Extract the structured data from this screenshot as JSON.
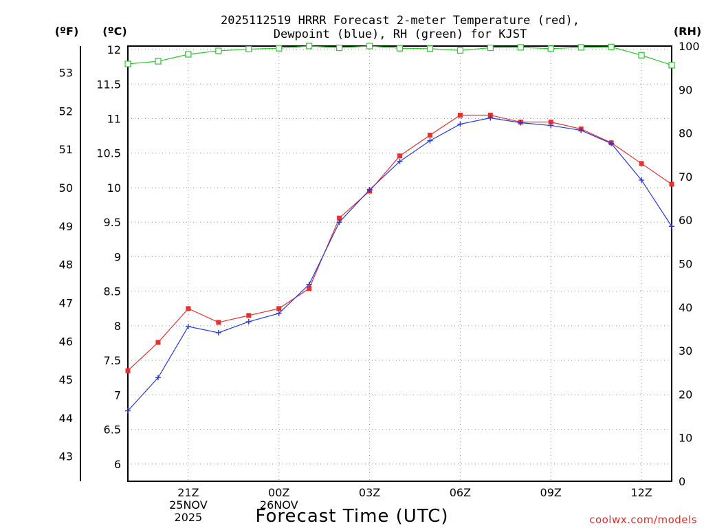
{
  "chart_data": {
    "type": "line",
    "title_line1": "2025112519 HRRR Forecast 2-meter Temperature (red),",
    "title_line2": "Dewpoint (blue), RH (green) for KJST",
    "xlabel": "Forecast Time (UTC)",
    "units": {
      "fahrenheit": "(ºF)",
      "celsius": "(ºC)",
      "rh": "(RH)"
    },
    "credit": "coolwx.com/models",
    "x_hours": [
      19,
      20,
      21,
      22,
      23,
      24,
      25,
      26,
      27,
      28,
      29,
      30,
      31,
      32,
      33,
      34,
      35,
      36,
      37
    ],
    "x_ticks": [
      {
        "hour": 21,
        "lines": [
          "21Z",
          "25NOV",
          "2025"
        ]
      },
      {
        "hour": 24,
        "lines": [
          "00Z",
          "26NOV"
        ]
      },
      {
        "hour": 27,
        "lines": [
          "03Z"
        ]
      },
      {
        "hour": 30,
        "lines": [
          "06Z"
        ]
      },
      {
        "hour": 33,
        "lines": [
          "09Z"
        ]
      },
      {
        "hour": 36,
        "lines": [
          "12Z"
        ]
      }
    ],
    "xlim": [
      19,
      37
    ],
    "celsius_axis": {
      "ylim": [
        5.75,
        12.05
      ],
      "ticks": [
        "6",
        "6.5",
        "7",
        "7.5",
        "8",
        "8.5",
        "9",
        "9.5",
        "10",
        "10.5",
        "11",
        "11.5",
        "12"
      ]
    },
    "fahrenheit_axis": {
      "ticks": [
        "43",
        "44",
        "45",
        "46",
        "47",
        "48",
        "49",
        "50",
        "51",
        "52",
        "53"
      ]
    },
    "rh_axis": {
      "ylim": [
        0,
        100
      ],
      "ticks": [
        "0",
        "10",
        "20",
        "30",
        "40",
        "50",
        "60",
        "70",
        "80",
        "90",
        "100"
      ]
    },
    "series": [
      {
        "name": "Temperature",
        "color": "#e83030",
        "marker": "square-filled",
        "axis": "celsius",
        "values": [
          7.35,
          7.76,
          8.25,
          8.05,
          8.15,
          8.25,
          8.54,
          9.56,
          9.95,
          10.46,
          10.76,
          11.05,
          11.05,
          10.95,
          10.95,
          10.85,
          10.65,
          10.35,
          10.05
        ]
      },
      {
        "name": "Dewpoint",
        "color": "#2438e0",
        "marker": "plus",
        "axis": "celsius",
        "values": [
          6.77,
          7.25,
          7.99,
          7.9,
          8.06,
          8.18,
          8.6,
          9.5,
          9.97,
          10.38,
          10.68,
          10.92,
          11.01,
          10.94,
          10.9,
          10.83,
          10.64,
          10.11,
          9.44
        ]
      },
      {
        "name": "RH",
        "color": "#22cc22",
        "marker": "square-open",
        "axis": "rh",
        "values": [
          95.9,
          96.5,
          98.1,
          98.9,
          99.3,
          99.5,
          100,
          99.6,
          100,
          99.5,
          99.4,
          99.0,
          99.6,
          99.7,
          99.4,
          99.7,
          99.8,
          97.9,
          95.6
        ]
      }
    ]
  }
}
